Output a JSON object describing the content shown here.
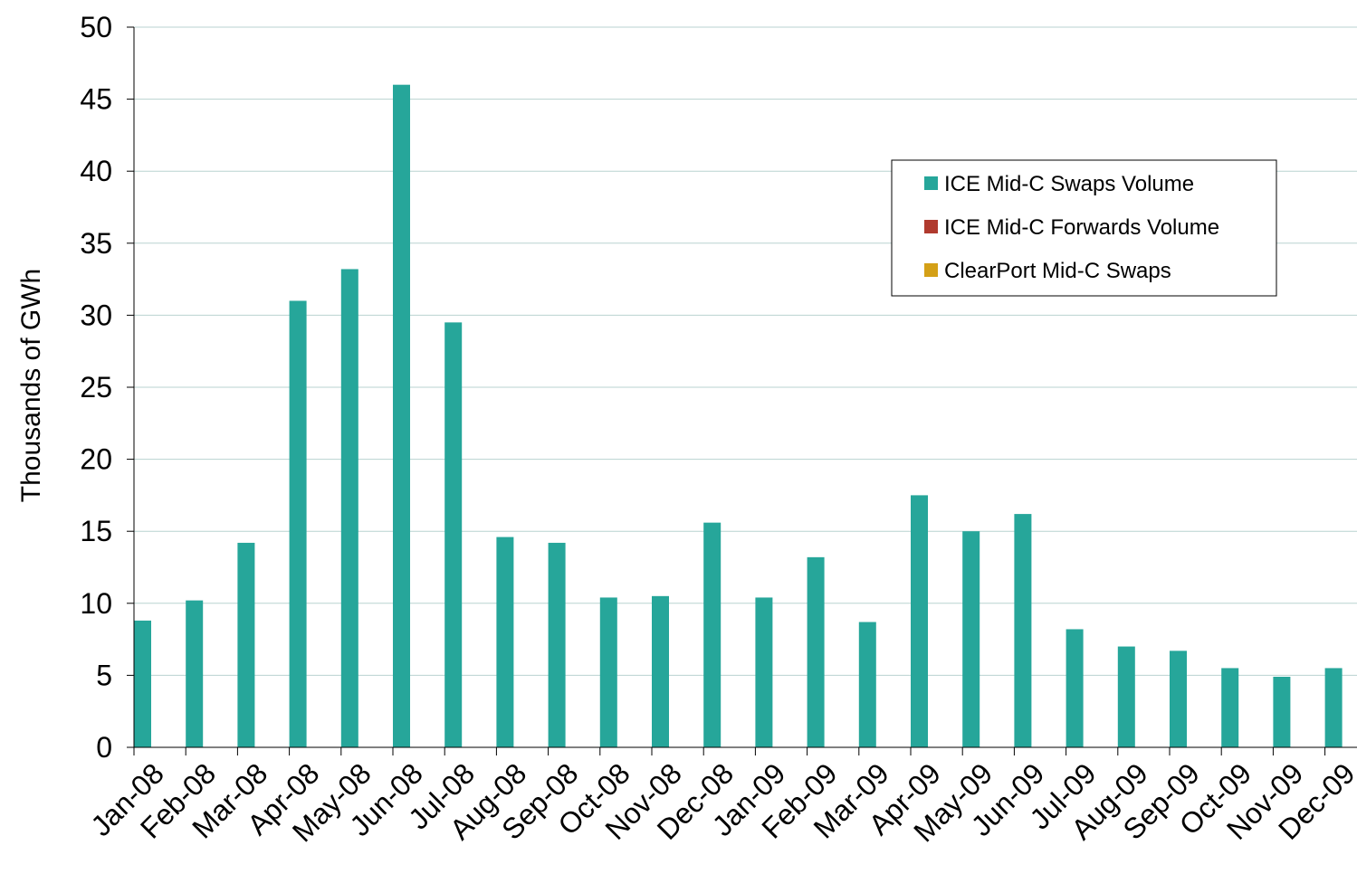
{
  "chart_data": {
    "type": "bar",
    "ylabel": "Thousands of GWh",
    "ylim": [
      0,
      50
    ],
    "yticks": [
      0,
      5,
      10,
      15,
      20,
      25,
      30,
      35,
      40,
      45,
      50
    ],
    "grid": true,
    "legend_position": "top-right",
    "categories": [
      "Jan-08",
      "Feb-08",
      "Mar-08",
      "Apr-08",
      "May-08",
      "Jun-08",
      "Jul-08",
      "Aug-08",
      "Sep-08",
      "Oct-08",
      "Nov-08",
      "Dec-08",
      "Jan-09",
      "Feb-09",
      "Mar-09",
      "Apr-09",
      "May-09",
      "Jun-09",
      "Jul-09",
      "Aug-09",
      "Sep-09",
      "Oct-09",
      "Nov-09",
      "Dec-09"
    ],
    "series": [
      {
        "name": "ICE Mid-C Swaps Volume",
        "color": "#26a69a",
        "values": [
          8.8,
          10.2,
          14.2,
          31.0,
          33.2,
          46.0,
          29.5,
          14.6,
          14.2,
          10.4,
          10.5,
          15.6,
          10.4,
          13.2,
          8.7,
          17.5,
          15.0,
          16.2,
          8.2,
          7.0,
          6.7,
          5.5,
          4.9,
          5.5
        ]
      },
      {
        "name": "ICE Mid-C Forwards Volume",
        "color": "#b03a2e",
        "values": [
          0,
          0,
          0,
          0,
          0,
          0,
          0,
          0,
          0,
          0,
          0,
          0,
          0,
          0,
          0,
          0,
          0,
          0,
          0,
          0,
          0,
          0,
          0,
          0
        ]
      },
      {
        "name": "ClearPort Mid-C Swaps",
        "color": "#d4a017",
        "values": [
          0,
          0,
          0,
          0,
          0,
          0,
          0,
          0,
          0,
          0,
          0,
          0,
          0,
          0,
          0,
          0,
          0,
          0,
          0,
          0,
          0,
          0,
          0,
          0
        ]
      }
    ]
  }
}
